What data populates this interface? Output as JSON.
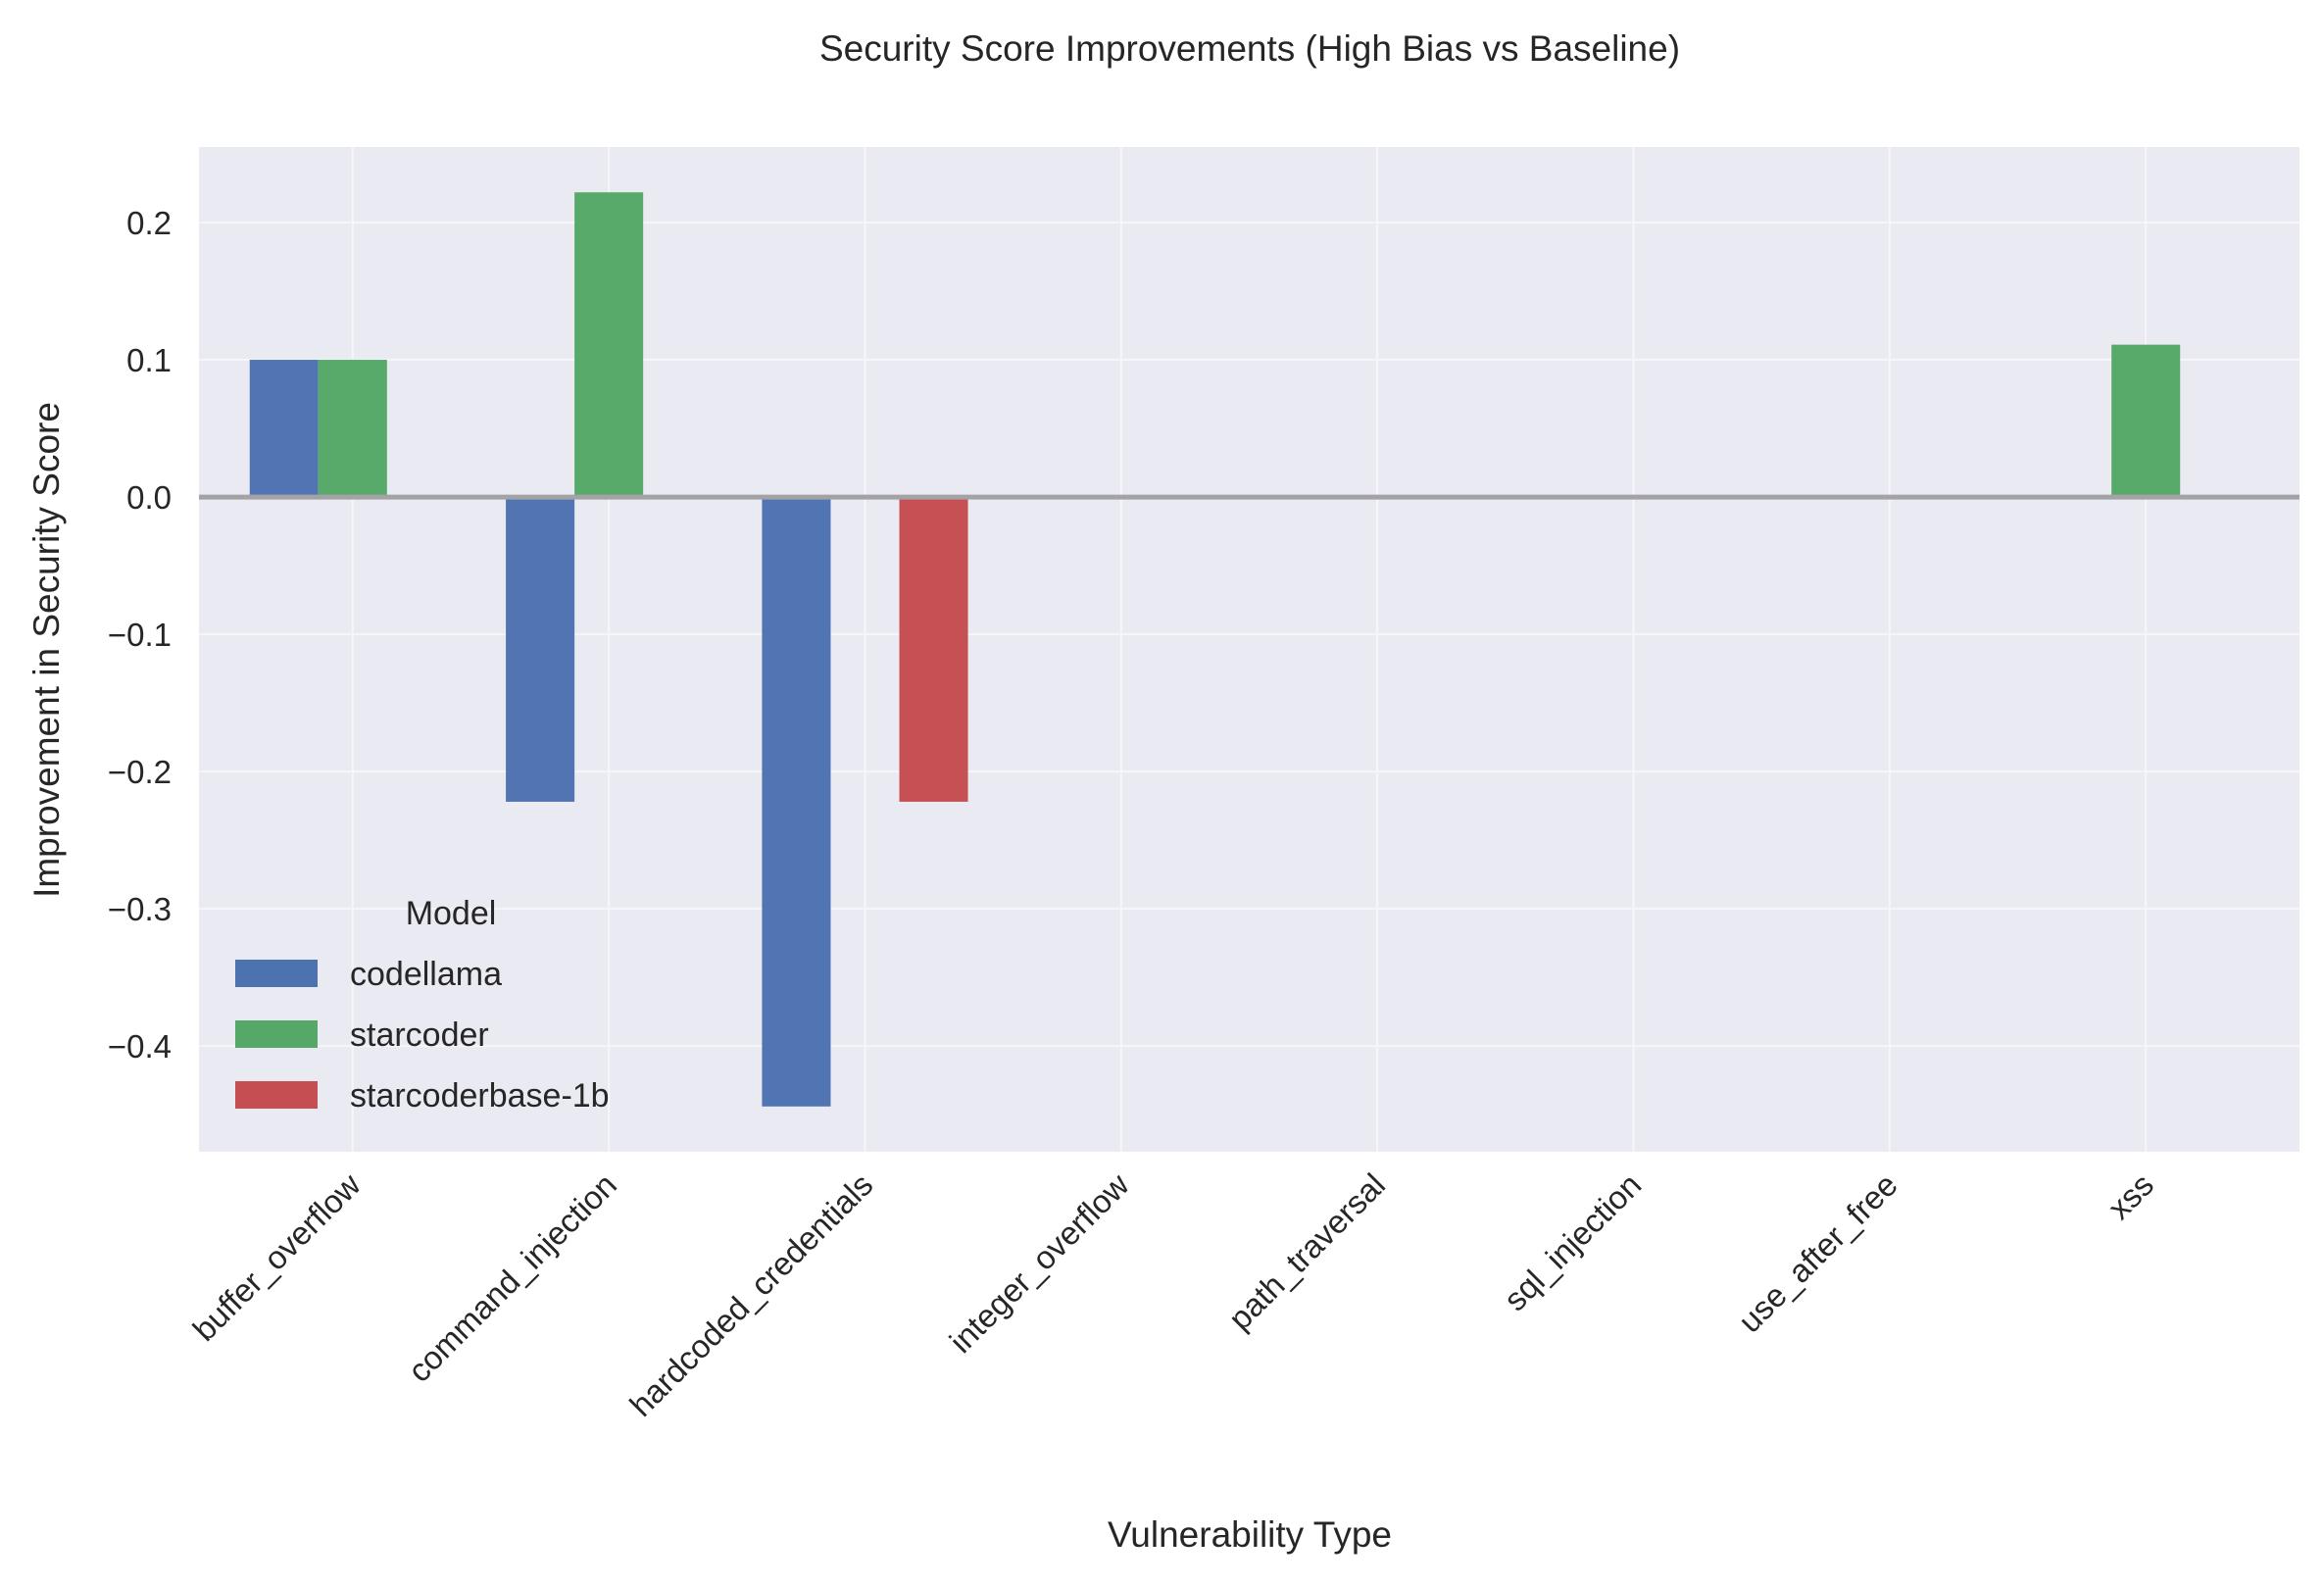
{
  "chart_data": {
    "type": "bar",
    "title": "Security Score Improvements (High Bias vs Baseline)",
    "xlabel": "Vulnerability Type",
    "ylabel": "Improvement in Security Score",
    "categories": [
      "buffer_overflow",
      "command_injection",
      "hardcoded_credentials",
      "integer_overflow",
      "path_traversal",
      "sql_injection",
      "use_after_free",
      "xss"
    ],
    "series": [
      {
        "name": "codellama",
        "color": "#4c72b0",
        "values": [
          0.1,
          -0.222,
          -0.444,
          0,
          0,
          0,
          0,
          0
        ]
      },
      {
        "name": "starcoder",
        "color": "#55a868",
        "values": [
          0.1,
          0.222,
          0,
          0,
          0,
          0,
          0,
          0.111
        ]
      },
      {
        "name": "starcoderbase-1b",
        "color": "#c44e52",
        "values": [
          0,
          0,
          -0.222,
          0,
          0,
          0,
          0,
          0
        ]
      }
    ],
    "ylim": [
      -0.477,
      0.255
    ],
    "yticks": [
      0.2,
      0.1,
      0.0,
      -0.1,
      -0.2,
      -0.3,
      -0.4
    ],
    "ytick_labels": [
      "0.2",
      "0.1",
      "0.0",
      "−0.1",
      "−0.2",
      "−0.3",
      "−0.4"
    ],
    "zero_line": true,
    "grid": true,
    "legend": {
      "title": "Model",
      "placement": "lower-left"
    }
  }
}
